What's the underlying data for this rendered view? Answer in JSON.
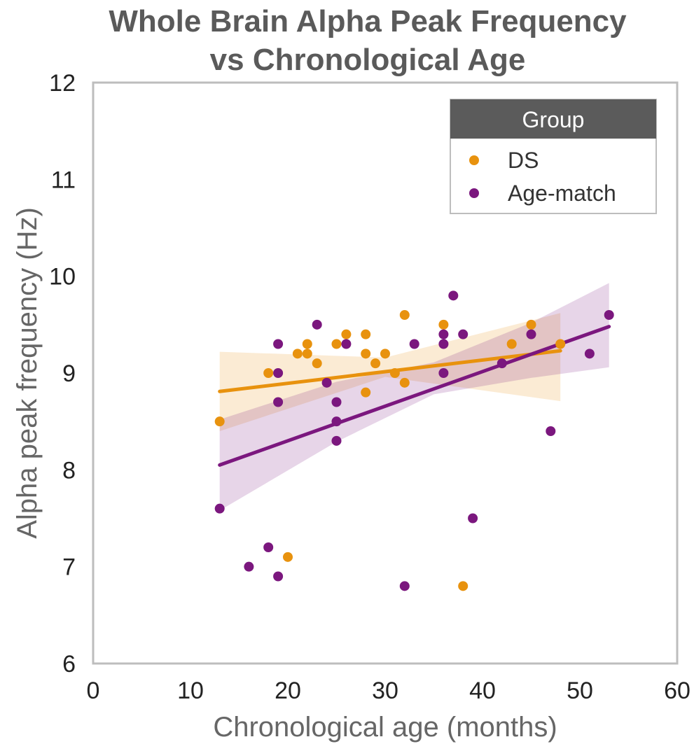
{
  "chart_data": {
    "type": "scatter",
    "title_lines": [
      "Whole Brain Alpha Peak Frequency",
      "vs Chronological Age"
    ],
    "xlabel": "Chronological age (months)",
    "ylabel": "Alpha peak frequency (Hz)",
    "xlim": [
      0,
      60
    ],
    "ylim": [
      6,
      12
    ],
    "xticks": [
      "0",
      "10",
      "20",
      "30",
      "40",
      "50",
      "60"
    ],
    "yticks": [
      "6",
      "7",
      "8",
      "9",
      "10",
      "11",
      "12"
    ],
    "grid": false,
    "legend": {
      "title": "Group",
      "placement": "top-right",
      "entries": [
        "DS",
        "Age-match"
      ]
    },
    "series": [
      {
        "name": "DS",
        "color": "#e8920e",
        "points": [
          [
            13,
            8.5
          ],
          [
            18,
            9.0
          ],
          [
            20,
            7.1
          ],
          [
            21,
            9.2
          ],
          [
            22,
            9.3
          ],
          [
            22,
            9.2
          ],
          [
            23,
            9.1
          ],
          [
            25,
            9.3
          ],
          [
            26,
            9.4
          ],
          [
            28,
            9.4
          ],
          [
            28,
            9.2
          ],
          [
            28,
            8.8
          ],
          [
            29,
            9.1
          ],
          [
            30,
            9.2
          ],
          [
            31,
            9.0
          ],
          [
            32,
            9.6
          ],
          [
            32,
            8.9
          ],
          [
            36,
            9.5
          ],
          [
            38,
            6.8
          ],
          [
            43,
            9.3
          ],
          [
            45,
            9.5
          ],
          [
            48,
            9.3
          ]
        ],
        "fit": {
          "x": [
            13,
            48
          ],
          "y": [
            8.81,
            9.23
          ]
        },
        "ci": {
          "x": [
            13,
            30,
            48
          ],
          "upper": [
            9.22,
            9.16,
            9.62
          ],
          "lower": [
            8.4,
            8.96,
            8.71
          ]
        }
      },
      {
        "name": "Age-match",
        "color": "#7b177e",
        "points": [
          [
            13,
            7.6
          ],
          [
            16,
            7.0
          ],
          [
            18,
            7.2
          ],
          [
            19,
            9.3
          ],
          [
            19,
            9.0
          ],
          [
            19,
            8.7
          ],
          [
            19,
            6.9
          ],
          [
            23,
            9.5
          ],
          [
            24,
            8.9
          ],
          [
            25,
            8.7
          ],
          [
            25,
            8.5
          ],
          [
            25,
            8.3
          ],
          [
            26,
            9.3
          ],
          [
            32,
            6.8
          ],
          [
            33,
            9.3
          ],
          [
            36,
            9.4
          ],
          [
            36,
            9.3
          ],
          [
            36,
            9.0
          ],
          [
            37,
            9.8
          ],
          [
            38,
            9.4
          ],
          [
            39,
            7.5
          ],
          [
            42,
            9.1
          ],
          [
            45,
            9.4
          ],
          [
            47,
            8.4
          ],
          [
            51,
            9.2
          ],
          [
            53,
            9.6
          ]
        ],
        "fit": {
          "x": [
            13,
            53
          ],
          "y": [
            8.05,
            9.48
          ]
        },
        "ci": {
          "x": [
            13,
            25,
            35,
            45,
            53
          ],
          "upper": [
            8.52,
            8.91,
            9.11,
            9.52,
            9.93
          ],
          "lower": [
            7.58,
            8.29,
            8.78,
            8.95,
            9.06
          ]
        }
      }
    ]
  }
}
